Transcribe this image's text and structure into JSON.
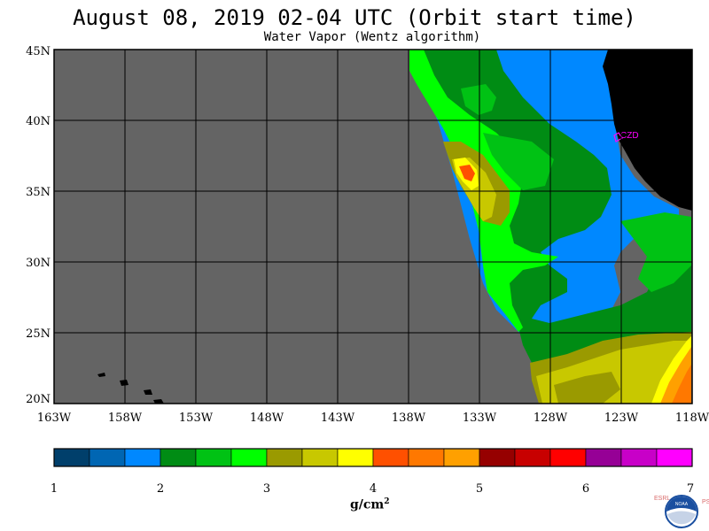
{
  "header": {
    "title": "August 08, 2019  02-04 UTC  (Orbit start time)",
    "subtitle": "Water Vapor (Wentz algorithm)"
  },
  "map": {
    "lat_labels": [
      "45N",
      "40N",
      "35N",
      "30N",
      "25N",
      "20N"
    ],
    "lon_labels": [
      "163W",
      "158W",
      "153W",
      "148W",
      "143W",
      "138W",
      "133W",
      "128W",
      "123W",
      "118W"
    ],
    "station_label": "CZD",
    "colors": {
      "no_data": "#646464",
      "land": "#000000",
      "station": "#ff00ff"
    }
  },
  "colorbar": {
    "tick_labels": [
      "1",
      "2",
      "3",
      "4",
      "5",
      "6",
      "7"
    ],
    "unit": "g/cm",
    "unit_exp": "2",
    "colors": [
      "#003f6b",
      "#0066b3",
      "#0088ff",
      "#008c14",
      "#00c214",
      "#00ff00",
      "#9a9a00",
      "#c8c800",
      "#ffff00",
      "#ff5000",
      "#ff7800",
      "#ffa000",
      "#960000",
      "#c80000",
      "#ff0000",
      "#960096",
      "#c800c8",
      "#ff00ff"
    ]
  },
  "logo": {
    "left_text": "ESRL",
    "right_text": "PSD",
    "center_text": "NOAA"
  }
}
